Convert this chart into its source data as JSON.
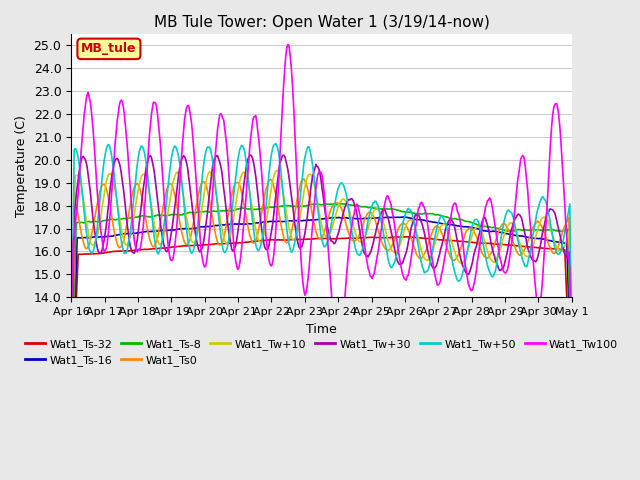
{
  "title": "MB Tule Tower: Open Water 1 (3/19/14-now)",
  "xlabel": "Time",
  "ylabel": "Temperature (C)",
  "ylim": [
    14.0,
    25.5
  ],
  "yticks": [
    14.0,
    15.0,
    16.0,
    17.0,
    18.0,
    19.0,
    20.0,
    21.0,
    22.0,
    23.0,
    24.0,
    25.0
  ],
  "xtick_labels": [
    "Apr 16",
    "Apr 17",
    "Apr 18",
    "Apr 19",
    "Apr 20",
    "Apr 21",
    "Apr 22",
    "Apr 23",
    "Apr 24",
    "Apr 25",
    "Apr 26",
    "Apr 27",
    "Apr 28",
    "Apr 29",
    "Apr 30",
    "May 1"
  ],
  "background_color": "#e8e8e8",
  "plot_bg_color": "#ffffff",
  "grid_color": "#cccccc",
  "series": {
    "Wat1_Ts-32": {
      "color": "#dd0000",
      "lw": 1.2
    },
    "Wat1_Ts-16": {
      "color": "#0000cc",
      "lw": 1.2
    },
    "Wat1_Ts-8": {
      "color": "#00bb00",
      "lw": 1.2
    },
    "Wat1_Ts0": {
      "color": "#ff8800",
      "lw": 1.2
    },
    "Wat1_Tw+10": {
      "color": "#cccc00",
      "lw": 1.2
    },
    "Wat1_Tw+30": {
      "color": "#aa00aa",
      "lw": 1.2
    },
    "Wat1_Tw+50": {
      "color": "#00cccc",
      "lw": 1.2
    },
    "Wat1_Tw100": {
      "color": "#ff00ff",
      "lw": 1.2
    }
  },
  "annotation_text": "MB_tule",
  "annotation_color": "#cc0000",
  "annotation_bg": "#ffff99"
}
